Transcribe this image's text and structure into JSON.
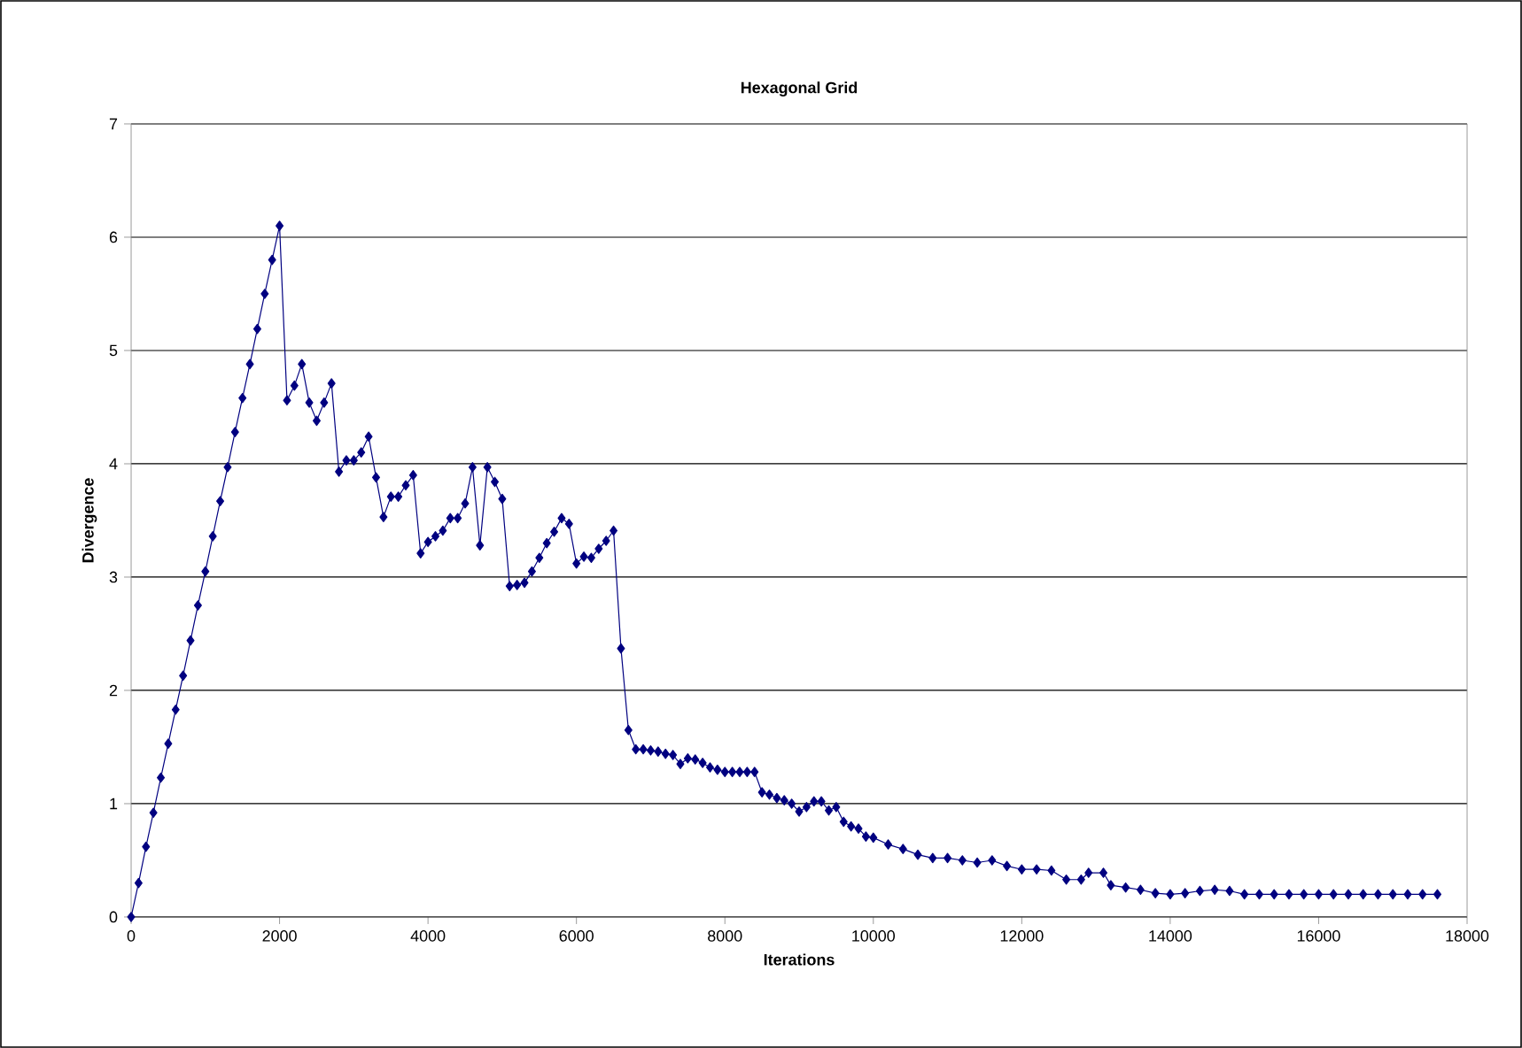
{
  "chart_data": {
    "type": "line",
    "title": "Hexagonal Grid",
    "xlabel": "Iterations",
    "ylabel": "Divergence",
    "xlim": [
      0,
      18000
    ],
    "xticks": [
      0,
      2000,
      4000,
      6000,
      8000,
      10000,
      12000,
      14000,
      16000,
      18000
    ],
    "ylim": [
      0,
      7
    ],
    "yticks": [
      0,
      1,
      2,
      3,
      4,
      5,
      6,
      7
    ],
    "grid": "y",
    "marker": "diamond",
    "line_style": "solid",
    "series": [
      {
        "color": "#000080",
        "x": [
          0,
          100,
          200,
          300,
          400,
          500,
          600,
          700,
          800,
          900,
          1000,
          1100,
          1200,
          1300,
          1400,
          1500,
          1600,
          1700,
          1800,
          1900,
          2000,
          2100,
          2200,
          2300,
          2400,
          2500,
          2600,
          2700,
          2800,
          2900,
          3000,
          3100,
          3200,
          3300,
          3400,
          3500,
          3600,
          3700,
          3800,
          3900,
          4000,
          4100,
          4200,
          4300,
          4400,
          4500,
          4600,
          4700,
          4800,
          4900,
          5000,
          5100,
          5200,
          5300,
          5400,
          5500,
          5600,
          5700,
          5800,
          5900,
          6000,
          6100,
          6200,
          6300,
          6400,
          6500,
          6600,
          6700,
          6800,
          6900,
          7000,
          7100,
          7200,
          7300,
          7400,
          7500,
          7600,
          7700,
          7800,
          7900,
          8000,
          8100,
          8200,
          8300,
          8400,
          8500,
          8600,
          8700,
          8800,
          8900,
          9000,
          9100,
          9200,
          9300,
          9400,
          9500,
          9600,
          9700,
          9800,
          9900,
          10000,
          10200,
          10400,
          10600,
          10800,
          11000,
          11200,
          11400,
          11600,
          11800,
          12000,
          12200,
          12400,
          12600,
          12800,
          12900,
          13100,
          13200,
          13400,
          13600,
          13800,
          14000,
          14200,
          14400,
          14600,
          14800,
          15000,
          15200,
          15400,
          15600,
          15800,
          16000,
          16200,
          16400,
          16600,
          16800,
          17000,
          17200,
          17400,
          17600
        ],
        "values": [
          0,
          0.3,
          0.62,
          0.92,
          1.23,
          1.53,
          1.83,
          2.13,
          2.44,
          2.75,
          3.05,
          3.36,
          3.67,
          3.97,
          4.28,
          4.58,
          4.88,
          5.19,
          5.5,
          5.8,
          6.1,
          4.56,
          4.69,
          4.88,
          4.54,
          4.38,
          4.54,
          4.71,
          3.93,
          4.03,
          4.03,
          4.1,
          4.24,
          3.88,
          3.53,
          3.71,
          3.71,
          3.81,
          3.9,
          3.21,
          3.31,
          3.36,
          3.41,
          3.52,
          3.52,
          3.65,
          3.97,
          3.28,
          3.97,
          3.84,
          3.69,
          2.92,
          2.93,
          2.95,
          3.05,
          3.17,
          3.3,
          3.4,
          3.52,
          3.47,
          3.12,
          3.18,
          3.17,
          3.25,
          3.32,
          3.41,
          2.37,
          1.65,
          1.48,
          1.48,
          1.47,
          1.46,
          1.44,
          1.43,
          1.35,
          1.4,
          1.39,
          1.36,
          1.32,
          1.3,
          1.28,
          1.28,
          1.28,
          1.28,
          1.28,
          1.1,
          1.08,
          1.05,
          1.03,
          1.0,
          0.93,
          0.97,
          1.02,
          1.02,
          0.94,
          0.97,
          0.84,
          0.8,
          0.78,
          0.71,
          0.7,
          0.64,
          0.6,
          0.55,
          0.52,
          0.52,
          0.5,
          0.48,
          0.5,
          0.45,
          0.42,
          0.42,
          0.41,
          0.33,
          0.33,
          0.39,
          0.39,
          0.28,
          0.26,
          0.24,
          0.21,
          0.2,
          0.21,
          0.23,
          0.24,
          0.23,
          0.2,
          0.2,
          0.2,
          0.2,
          0.2,
          0.2,
          0.2,
          0.2,
          0.2,
          0.2,
          0.2,
          0.2,
          0.2,
          0.2
        ]
      }
    ]
  }
}
